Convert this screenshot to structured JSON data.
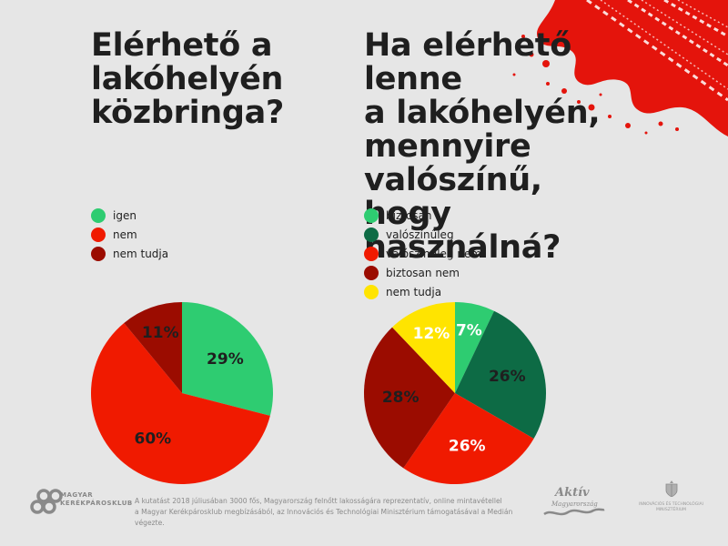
{
  "left": {
    "title_lines": [
      "Elérhető a",
      "lakóhelyén",
      "közbringa?"
    ]
  },
  "right": {
    "title_lines": [
      "Ha elérhető lenne",
      "a lakóhelyén,",
      "mennyire",
      "valószínű, hogy",
      "használná?"
    ]
  },
  "chart_data": [
    {
      "type": "pie",
      "title": "Elérhető a lakóhelyén közbringa?",
      "legend_position": "above",
      "slices": [
        {
          "label": "igen",
          "value": 29,
          "display": "29%",
          "color": "#2ecc71",
          "label_color": "#1f1f1f"
        },
        {
          "label": "nem",
          "value": 60,
          "display": "60%",
          "color": "#f01a00",
          "label_color": "#1f1f1f"
        },
        {
          "label": "nem tudja",
          "value": 11,
          "display": "11%",
          "color": "#9b0c00",
          "label_color": "#1f1f1f"
        }
      ]
    },
    {
      "type": "pie",
      "title": "Ha elérhető lenne a lakóhelyén, mennyire valószínű, hogy használná?",
      "legend_position": "above",
      "slices": [
        {
          "label": "biztosan",
          "value": 7,
          "display": "7%",
          "color": "#2ecc71",
          "label_color": "#ffffff"
        },
        {
          "label": "valószínűleg",
          "value": 26,
          "display": "26%",
          "color": "#0d6b45",
          "label_color": "#1f1f1f"
        },
        {
          "label": "valószínűleg nem",
          "value": 26,
          "display": "26%",
          "color": "#f01a00",
          "label_color": "#ffffff"
        },
        {
          "label": "biztosan nem",
          "value": 28,
          "display": "28%",
          "color": "#9b0c00",
          "label_color": "#1f1f1f"
        },
        {
          "label": "nem tudja",
          "value": 12,
          "display": "12%",
          "color": "#ffe400",
          "label_color": "#ffffff"
        }
      ]
    }
  ],
  "footer": {
    "logo_text_line1": "MAGYAR",
    "logo_text_line2": "KERÉKPÁROSKLUB",
    "note_line1": "A kutatást 2018 júliusában 3000 fős, Magyarország felnőtt lakosságára reprezentatív, online mintavétellel",
    "note_line2": "a Magyar Kerékpárosklub megbízásából, az Innovációs és Technológiai Minisztérium támogatásával a Medián végezte.",
    "aktiv_line1": "Aktív",
    "aktiv_line2": "Magyarország",
    "ministry_line1": "INNOVÁCIÓS ÉS TECHNOLÓGIAI",
    "ministry_line2": "MINISZTÉRIUM"
  },
  "colors": {
    "background": "#e6e6e6",
    "accent_red": "#e4140c"
  }
}
